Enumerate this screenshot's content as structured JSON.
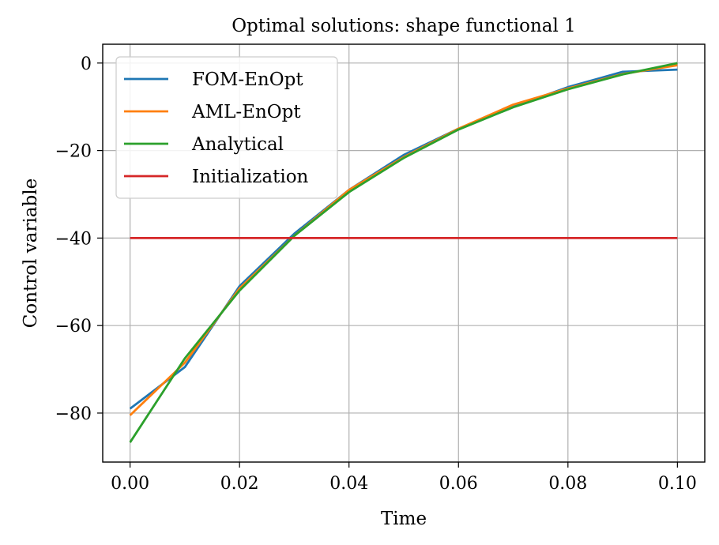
{
  "chart_data": {
    "type": "line",
    "title": "Optimal solutions: shape functional 1",
    "xlabel": "Time",
    "ylabel": "Control variable",
    "xlim": [
      -0.005,
      0.105
    ],
    "ylim": [
      -91.2,
      4.3
    ],
    "xticks": [
      0.0,
      0.02,
      0.04,
      0.06,
      0.08,
      0.1
    ],
    "xtick_labels": [
      "0.00",
      "0.02",
      "0.04",
      "0.06",
      "0.08",
      "0.10"
    ],
    "yticks": [
      0,
      -20,
      -40,
      -60,
      -80
    ],
    "ytick_labels": [
      "0",
      "−20",
      "−40",
      "−60",
      "−80"
    ],
    "grid": true,
    "legend_position": "top-left",
    "x": [
      0.0,
      0.01,
      0.02,
      0.03,
      0.04,
      0.05,
      0.06,
      0.07,
      0.08,
      0.09,
      0.1
    ],
    "series": [
      {
        "name": "FOM-EnOpt",
        "color": "#1f77b4",
        "values": [
          -79.0,
          -69.5,
          -51.0,
          -39.0,
          -29.0,
          -21.0,
          -15.0,
          -10.0,
          -5.5,
          -2.0,
          -1.5
        ]
      },
      {
        "name": "AML-EnOpt",
        "color": "#ff7f0e",
        "values": [
          -80.5,
          -68.5,
          -51.5,
          -39.5,
          -29.0,
          -21.5,
          -15.0,
          -9.5,
          -5.8,
          -2.5,
          -0.5
        ]
      },
      {
        "name": "Analytical",
        "color": "#2ca02c",
        "values": [
          -86.7,
          -67.5,
          -52.0,
          -39.5,
          -29.5,
          -21.7,
          -15.2,
          -10.1,
          -6.0,
          -2.6,
          0.0
        ]
      },
      {
        "name": "Initialization",
        "color": "#d62728",
        "values": [
          -40,
          -40,
          -40,
          -40,
          -40,
          -40,
          -40,
          -40,
          -40,
          -40,
          -40
        ]
      }
    ]
  }
}
